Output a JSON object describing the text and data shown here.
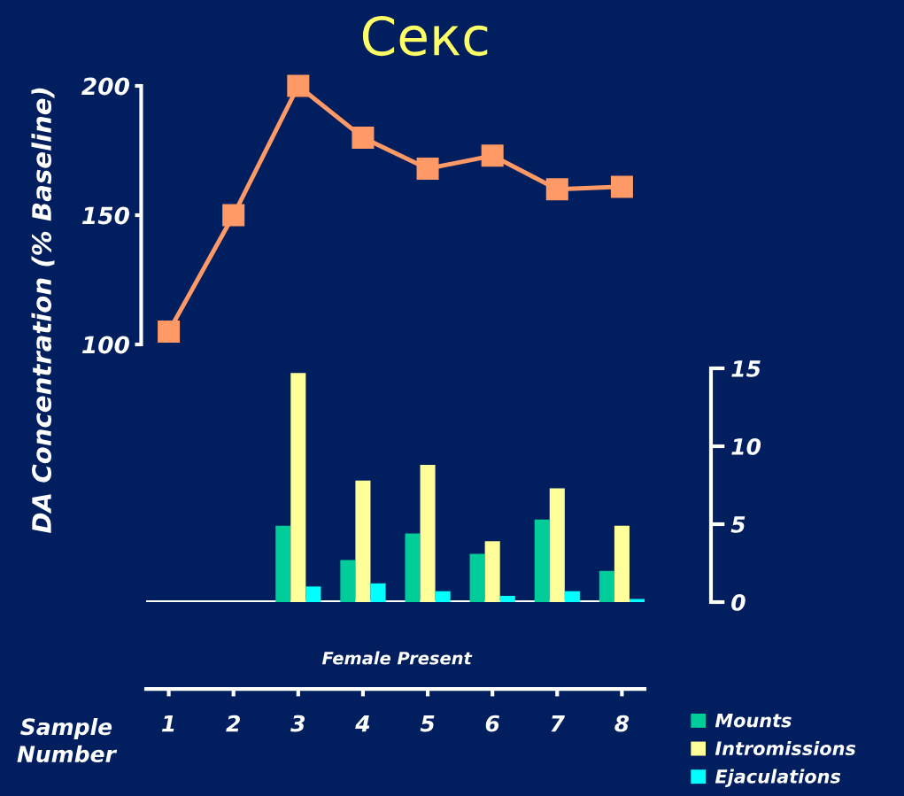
{
  "chart_data": [
    {
      "type": "line",
      "title": "Секс",
      "ylabel": "DA Concentration (% Baseline)",
      "categories": [
        "1",
        "2",
        "3",
        "4",
        "5",
        "6",
        "7",
        "8"
      ],
      "series": [
        {
          "color": "#ff9966",
          "values": [
            105,
            150,
            200,
            180,
            168,
            173,
            160,
            161
          ]
        }
      ],
      "ylim": [
        100,
        200
      ],
      "yticks": [
        100,
        150,
        200
      ],
      "tick_labels": "y",
      "marker": "square",
      "line_style": "solid"
    },
    {
      "type": "bar",
      "xlabel": "Sample\nNumber",
      "categories": [
        "1",
        "2",
        "3",
        "4",
        "5",
        "6",
        "7",
        "8"
      ],
      "series": [
        {
          "name": "Mounts",
          "color": "#00cc99",
          "axis": "y2",
          "values": [
            0,
            0,
            4.9,
            2.7,
            4.4,
            3.1,
            5.3,
            2.0
          ]
        },
        {
          "name": "Intromissions",
          "color": "#ffff99",
          "axis": "y2",
          "values": [
            0,
            0,
            14.7,
            7.8,
            8.8,
            3.9,
            7.3,
            4.9
          ]
        },
        {
          "name": "Ejaculations",
          "color": "#00ffff",
          "axis": "y2",
          "values": [
            0,
            0,
            1.0,
            1.2,
            0.7,
            0.4,
            0.7,
            0.2
          ]
        }
      ],
      "y2lim": [
        0,
        15
      ],
      "y2ticks": [
        0,
        5,
        10,
        15
      ],
      "annotations": [
        "Female Present"
      ],
      "ref_lines": [
        {
          "axis": "y2",
          "value": 0,
          "color": "#ffffff"
        }
      ],
      "legend": "bottom right"
    }
  ]
}
